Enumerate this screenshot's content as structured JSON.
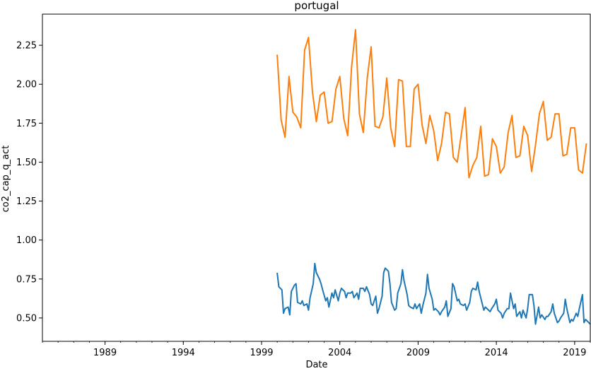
{
  "chart_data": {
    "type": "line",
    "title": "portugal",
    "xlabel": "Date",
    "ylabel": "co2_cap_q_act",
    "x_range": [
      1985.0,
      2020.0
    ],
    "ylim": [
      0.35,
      2.45
    ],
    "x_ticks": [
      {
        "year": 1989,
        "label": "1989"
      },
      {
        "year": 1994,
        "label": "1994"
      },
      {
        "year": 1999,
        "label": "1999"
      },
      {
        "year": 2004,
        "label": "2004"
      },
      {
        "year": 2009,
        "label": "2009"
      },
      {
        "year": 2014,
        "label": "2014"
      },
      {
        "year": 2019,
        "label": "2019"
      }
    ],
    "y_ticks": [
      {
        "value": 0.5,
        "label": "0.50"
      },
      {
        "value": 0.75,
        "label": "0.75"
      },
      {
        "value": 1.0,
        "label": "1.00"
      },
      {
        "value": 1.25,
        "label": "1.25"
      },
      {
        "value": 1.5,
        "label": "1.50"
      },
      {
        "value": 1.75,
        "label": "1.75"
      },
      {
        "value": 2.0,
        "label": "2.00"
      },
      {
        "value": 2.25,
        "label": "2.25"
      }
    ],
    "grid": false,
    "series": [
      {
        "color": "#1f77b4",
        "points": [
          [
            2000.0,
            0.79
          ],
          [
            2000.1,
            0.7
          ],
          [
            2000.3,
            0.68
          ],
          [
            2000.4,
            0.53
          ],
          [
            2000.5,
            0.56
          ],
          [
            2000.7,
            0.57
          ],
          [
            2000.8,
            0.52
          ],
          [
            2000.9,
            0.67
          ],
          [
            2001.1,
            0.71
          ],
          [
            2001.2,
            0.72
          ],
          [
            2001.3,
            0.6
          ],
          [
            2001.5,
            0.59
          ],
          [
            2001.6,
            0.61
          ],
          [
            2001.7,
            0.58
          ],
          [
            2001.9,
            0.59
          ],
          [
            2002.0,
            0.55
          ],
          [
            2002.1,
            0.63
          ],
          [
            2002.3,
            0.72
          ],
          [
            2002.4,
            0.85
          ],
          [
            2002.5,
            0.79
          ],
          [
            2002.7,
            0.75
          ],
          [
            2002.8,
            0.72
          ],
          [
            2002.9,
            0.68
          ],
          [
            2003.1,
            0.61
          ],
          [
            2003.2,
            0.63
          ],
          [
            2003.3,
            0.57
          ],
          [
            2003.5,
            0.66
          ],
          [
            2003.6,
            0.63
          ],
          [
            2003.7,
            0.68
          ],
          [
            2003.9,
            0.61
          ],
          [
            2004.0,
            0.66
          ],
          [
            2004.1,
            0.69
          ],
          [
            2004.3,
            0.67
          ],
          [
            2004.4,
            0.63
          ],
          [
            2004.5,
            0.66
          ],
          [
            2004.7,
            0.66
          ],
          [
            2004.8,
            0.67
          ],
          [
            2004.9,
            0.63
          ],
          [
            2005.1,
            0.66
          ],
          [
            2005.2,
            0.62
          ],
          [
            2005.3,
            0.69
          ],
          [
            2005.5,
            0.69
          ],
          [
            2005.6,
            0.67
          ],
          [
            2005.7,
            0.7
          ],
          [
            2005.9,
            0.65
          ],
          [
            2006.0,
            0.59
          ],
          [
            2006.1,
            0.58
          ],
          [
            2006.3,
            0.64
          ],
          [
            2006.4,
            0.53
          ],
          [
            2006.5,
            0.56
          ],
          [
            2006.7,
            0.64
          ],
          [
            2006.8,
            0.79
          ],
          [
            2006.9,
            0.82
          ],
          [
            2007.1,
            0.8
          ],
          [
            2007.2,
            0.72
          ],
          [
            2007.3,
            0.6
          ],
          [
            2007.5,
            0.55
          ],
          [
            2007.6,
            0.56
          ],
          [
            2007.7,
            0.66
          ],
          [
            2007.9,
            0.72
          ],
          [
            2008.0,
            0.81
          ],
          [
            2008.1,
            0.74
          ],
          [
            2008.3,
            0.65
          ],
          [
            2008.4,
            0.58
          ],
          [
            2008.5,
            0.57
          ],
          [
            2008.7,
            0.56
          ],
          [
            2008.8,
            0.59
          ],
          [
            2008.9,
            0.56
          ],
          [
            2009.1,
            0.59
          ],
          [
            2009.2,
            0.53
          ],
          [
            2009.3,
            0.58
          ],
          [
            2009.5,
            0.66
          ],
          [
            2009.6,
            0.78
          ],
          [
            2009.7,
            0.69
          ],
          [
            2009.9,
            0.62
          ],
          [
            2010.0,
            0.55
          ],
          [
            2010.1,
            0.56
          ],
          [
            2010.3,
            0.54
          ],
          [
            2010.4,
            0.52
          ],
          [
            2010.5,
            0.54
          ],
          [
            2010.7,
            0.57
          ],
          [
            2010.8,
            0.61
          ],
          [
            2010.9,
            0.51
          ],
          [
            2011.1,
            0.56
          ],
          [
            2011.2,
            0.72
          ],
          [
            2011.3,
            0.7
          ],
          [
            2011.5,
            0.61
          ],
          [
            2011.6,
            0.62
          ],
          [
            2011.7,
            0.59
          ],
          [
            2011.9,
            0.58
          ],
          [
            2012.0,
            0.59
          ],
          [
            2012.1,
            0.55
          ],
          [
            2012.3,
            0.6
          ],
          [
            2012.4,
            0.67
          ],
          [
            2012.5,
            0.69
          ],
          [
            2012.7,
            0.68
          ],
          [
            2012.8,
            0.73
          ],
          [
            2012.9,
            0.67
          ],
          [
            2013.1,
            0.59
          ],
          [
            2013.2,
            0.55
          ],
          [
            2013.3,
            0.57
          ],
          [
            2013.5,
            0.55
          ],
          [
            2013.6,
            0.54
          ],
          [
            2013.7,
            0.56
          ],
          [
            2013.9,
            0.59
          ],
          [
            2014.0,
            0.62
          ],
          [
            2014.1,
            0.55
          ],
          [
            2014.3,
            0.53
          ],
          [
            2014.4,
            0.5
          ],
          [
            2014.5,
            0.53
          ],
          [
            2014.7,
            0.56
          ],
          [
            2014.8,
            0.56
          ],
          [
            2014.9,
            0.66
          ],
          [
            2015.1,
            0.56
          ],
          [
            2015.2,
            0.59
          ],
          [
            2015.3,
            0.51
          ],
          [
            2015.5,
            0.54
          ],
          [
            2015.6,
            0.5
          ],
          [
            2015.7,
            0.55
          ],
          [
            2015.9,
            0.5
          ],
          [
            2016.0,
            0.56
          ],
          [
            2016.1,
            0.65
          ],
          [
            2016.3,
            0.65
          ],
          [
            2016.4,
            0.58
          ],
          [
            2016.5,
            0.46
          ],
          [
            2016.7,
            0.57
          ],
          [
            2016.8,
            0.5
          ],
          [
            2016.9,
            0.52
          ],
          [
            2017.1,
            0.49
          ],
          [
            2017.2,
            0.51
          ],
          [
            2017.3,
            0.51
          ],
          [
            2017.5,
            0.54
          ],
          [
            2017.6,
            0.59
          ],
          [
            2017.7,
            0.53
          ],
          [
            2017.9,
            0.47
          ],
          [
            2018.0,
            0.48
          ],
          [
            2018.1,
            0.5
          ],
          [
            2018.3,
            0.53
          ],
          [
            2018.4,
            0.62
          ],
          [
            2018.5,
            0.56
          ],
          [
            2018.7,
            0.47
          ],
          [
            2018.8,
            0.49
          ],
          [
            2018.9,
            0.48
          ],
          [
            2019.1,
            0.53
          ],
          [
            2019.2,
            0.51
          ],
          [
            2019.3,
            0.56
          ],
          [
            2019.5,
            0.65
          ],
          [
            2019.6,
            0.47
          ],
          [
            2019.7,
            0.49
          ],
          [
            2019.9,
            0.47
          ],
          [
            2020.0,
            0.46
          ]
        ]
      },
      {
        "color": "#ff7f0e",
        "points": [
          [
            2000.0,
            2.19
          ],
          [
            2000.25,
            1.77
          ],
          [
            2000.5,
            1.66
          ],
          [
            2000.75,
            2.05
          ],
          [
            2001.0,
            1.82
          ],
          [
            2001.25,
            1.79
          ],
          [
            2001.5,
            1.72
          ],
          [
            2001.75,
            2.22
          ],
          [
            2002.0,
            2.3
          ],
          [
            2002.25,
            1.95
          ],
          [
            2002.5,
            1.76
          ],
          [
            2002.75,
            1.93
          ],
          [
            2003.0,
            1.95
          ],
          [
            2003.25,
            1.75
          ],
          [
            2003.5,
            1.76
          ],
          [
            2003.75,
            1.97
          ],
          [
            2004.0,
            2.05
          ],
          [
            2004.25,
            1.78
          ],
          [
            2004.5,
            1.67
          ],
          [
            2004.75,
            2.11
          ],
          [
            2005.0,
            2.35
          ],
          [
            2005.25,
            1.81
          ],
          [
            2005.5,
            1.69
          ],
          [
            2005.75,
            2.04
          ],
          [
            2006.0,
            2.24
          ],
          [
            2006.25,
            1.73
          ],
          [
            2006.5,
            1.72
          ],
          [
            2006.75,
            1.79
          ],
          [
            2007.0,
            2.04
          ],
          [
            2007.25,
            1.72
          ],
          [
            2007.5,
            1.6
          ],
          [
            2007.75,
            2.03
          ],
          [
            2008.0,
            2.02
          ],
          [
            2008.25,
            1.6
          ],
          [
            2008.5,
            1.6
          ],
          [
            2008.75,
            1.97
          ],
          [
            2009.0,
            2.0
          ],
          [
            2009.25,
            1.74
          ],
          [
            2009.5,
            1.62
          ],
          [
            2009.75,
            1.8
          ],
          [
            2010.0,
            1.7
          ],
          [
            2010.25,
            1.51
          ],
          [
            2010.5,
            1.62
          ],
          [
            2010.75,
            1.82
          ],
          [
            2011.0,
            1.81
          ],
          [
            2011.25,
            1.53
          ],
          [
            2011.5,
            1.5
          ],
          [
            2011.75,
            1.67
          ],
          [
            2012.0,
            1.85
          ],
          [
            2012.25,
            1.4
          ],
          [
            2012.5,
            1.48
          ],
          [
            2012.75,
            1.53
          ],
          [
            2013.0,
            1.73
          ],
          [
            2013.25,
            1.41
          ],
          [
            2013.5,
            1.42
          ],
          [
            2013.75,
            1.65
          ],
          [
            2014.0,
            1.6
          ],
          [
            2014.25,
            1.43
          ],
          [
            2014.5,
            1.47
          ],
          [
            2014.75,
            1.69
          ],
          [
            2015.0,
            1.8
          ],
          [
            2015.25,
            1.53
          ],
          [
            2015.5,
            1.54
          ],
          [
            2015.75,
            1.73
          ],
          [
            2016.0,
            1.67
          ],
          [
            2016.25,
            1.44
          ],
          [
            2016.5,
            1.61
          ],
          [
            2016.75,
            1.81
          ],
          [
            2017.0,
            1.89
          ],
          [
            2017.25,
            1.64
          ],
          [
            2017.5,
            1.66
          ],
          [
            2017.75,
            1.81
          ],
          [
            2018.0,
            1.81
          ],
          [
            2018.25,
            1.54
          ],
          [
            2018.5,
            1.55
          ],
          [
            2018.75,
            1.72
          ],
          [
            2019.0,
            1.72
          ],
          [
            2019.25,
            1.45
          ],
          [
            2019.5,
            1.43
          ],
          [
            2019.75,
            1.62
          ]
        ]
      }
    ]
  }
}
